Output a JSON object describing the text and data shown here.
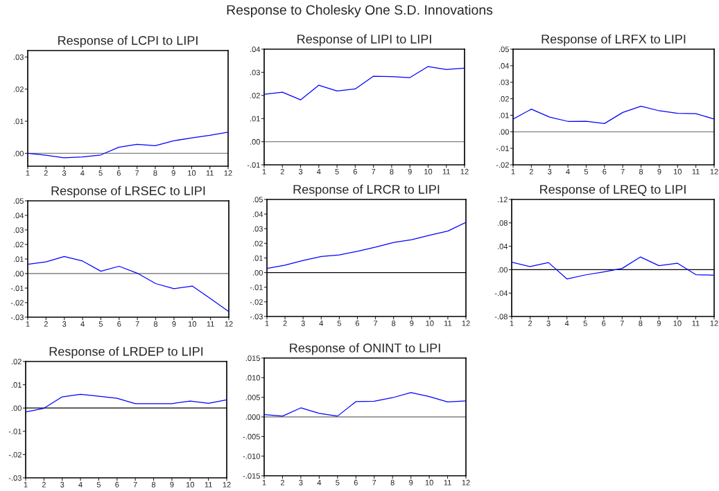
{
  "chart_data": [
    {
      "type": "line",
      "title": "Response of LCPI to LIPI",
      "annotations": [
        "Response to Cholesky One S.D. Innovations"
      ],
      "x": [
        1,
        2,
        3,
        4,
        5,
        6,
        7,
        8,
        9,
        10,
        11,
        12
      ],
      "xlim": [
        1,
        12
      ],
      "xticks": [
        1,
        2,
        3,
        4,
        5,
        6,
        7,
        8,
        9,
        10,
        11,
        12
      ],
      "ylim": [
        -0.004,
        0.032
      ],
      "yticks": [
        {
          "value": 0.0,
          "label": ".00"
        },
        {
          "value": 0.01,
          "label": ".01"
        },
        {
          "value": 0.02,
          "label": ".02"
        },
        {
          "value": 0.03,
          "label": ".03"
        }
      ],
      "grid": false,
      "legend": false,
      "ref_lines": [
        {
          "axis": "y",
          "value": 0,
          "color": "#808080"
        }
      ],
      "series": [
        {
          "color": "#0000ff",
          "values": [
            0.0,
            -0.0006,
            -0.0014,
            -0.0011,
            -0.0005,
            0.0019,
            0.0028,
            0.0024,
            0.0039,
            0.0048,
            0.0056,
            0.0066
          ]
        }
      ]
    },
    {
      "type": "line",
      "title": "Response of LIPI to LIPI",
      "x": [
        1,
        2,
        3,
        4,
        5,
        6,
        7,
        8,
        9,
        10,
        11,
        12
      ],
      "xlim": [
        1,
        12
      ],
      "xticks": [
        1,
        2,
        3,
        4,
        5,
        6,
        7,
        8,
        9,
        10,
        11,
        12
      ],
      "ylim": [
        -0.01,
        0.04
      ],
      "yticks": [
        {
          "value": -0.01,
          "label": "-.01"
        },
        {
          "value": 0.0,
          "label": ".00"
        },
        {
          "value": 0.01,
          "label": ".01"
        },
        {
          "value": 0.02,
          "label": ".02"
        },
        {
          "value": 0.03,
          "label": ".03"
        },
        {
          "value": 0.04,
          "label": ".04"
        }
      ],
      "grid": false,
      "legend": false,
      "ref_lines": [
        {
          "axis": "y",
          "value": 0,
          "color": "#808080"
        }
      ],
      "series": [
        {
          "color": "#0000ff",
          "values": [
            0.0205,
            0.0214,
            0.0181,
            0.0244,
            0.0219,
            0.0228,
            0.0283,
            0.0281,
            0.0277,
            0.0325,
            0.0312,
            0.0318
          ]
        }
      ]
    },
    {
      "type": "line",
      "title": "Response of LRFX to LIPI",
      "x": [
        1,
        2,
        3,
        4,
        5,
        6,
        7,
        8,
        9,
        10,
        11,
        12
      ],
      "xlim": [
        1,
        12
      ],
      "xticks": [
        1,
        2,
        3,
        4,
        5,
        6,
        7,
        8,
        9,
        10,
        11,
        12
      ],
      "ylim": [
        -0.02,
        0.05
      ],
      "yticks": [
        {
          "value": -0.02,
          "label": "-.02"
        },
        {
          "value": -0.01,
          "label": "-.01"
        },
        {
          "value": 0.0,
          "label": ".00"
        },
        {
          "value": 0.01,
          "label": ".01"
        },
        {
          "value": 0.02,
          "label": ".02"
        },
        {
          "value": 0.03,
          "label": ".03"
        },
        {
          "value": 0.04,
          "label": ".04"
        },
        {
          "value": 0.05,
          "label": ".05"
        }
      ],
      "grid": false,
      "legend": false,
      "ref_lines": [
        {
          "axis": "y",
          "value": 0,
          "color": "#808080"
        }
      ],
      "series": [
        {
          "color": "#0000ff",
          "values": [
            0.0077,
            0.0137,
            0.0089,
            0.0063,
            0.0064,
            0.005,
            0.0117,
            0.0155,
            0.0127,
            0.0112,
            0.011,
            0.0077
          ]
        }
      ]
    },
    {
      "type": "line",
      "title": "Response of LRSEC to LIPI",
      "x": [
        1,
        2,
        3,
        4,
        5,
        6,
        7,
        8,
        9,
        10,
        11,
        12
      ],
      "xlim": [
        1,
        12
      ],
      "xticks": [
        1,
        2,
        3,
        4,
        5,
        6,
        7,
        8,
        9,
        10,
        11,
        12
      ],
      "ylim": [
        -0.03,
        0.05
      ],
      "yticks": [
        {
          "value": -0.03,
          "label": "-.03"
        },
        {
          "value": -0.02,
          "label": "-.02"
        },
        {
          "value": -0.01,
          "label": "-.01"
        },
        {
          "value": 0.0,
          "label": ".00"
        },
        {
          "value": 0.01,
          "label": ".01"
        },
        {
          "value": 0.02,
          "label": ".02"
        },
        {
          "value": 0.03,
          "label": ".03"
        },
        {
          "value": 0.04,
          "label": ".04"
        },
        {
          "value": 0.05,
          "label": ".05"
        }
      ],
      "grid": false,
      "legend": false,
      "ref_lines": [
        {
          "axis": "y",
          "value": 0,
          "color": "#808080"
        }
      ],
      "series": [
        {
          "color": "#0000ff",
          "values": [
            0.0064,
            0.008,
            0.0117,
            0.0086,
            0.0016,
            0.005,
            0.0002,
            -0.0069,
            -0.0104,
            -0.0086,
            -0.0173,
            -0.0262
          ]
        }
      ]
    },
    {
      "type": "line",
      "title": "Response of LRCR to LIPI",
      "x": [
        1,
        2,
        3,
        4,
        5,
        6,
        7,
        8,
        9,
        10,
        11,
        12
      ],
      "xlim": [
        1,
        12
      ],
      "xticks": [
        1,
        2,
        3,
        4,
        5,
        6,
        7,
        8,
        9,
        10,
        11,
        12
      ],
      "ylim": [
        -0.03,
        0.05
      ],
      "yticks": [
        {
          "value": -0.03,
          "label": "-.03"
        },
        {
          "value": -0.02,
          "label": "-.02"
        },
        {
          "value": -0.01,
          "label": "-.01"
        },
        {
          "value": 0.0,
          "label": ".00"
        },
        {
          "value": 0.01,
          "label": ".01"
        },
        {
          "value": 0.02,
          "label": ".02"
        },
        {
          "value": 0.03,
          "label": ".03"
        },
        {
          "value": 0.04,
          "label": ".04"
        },
        {
          "value": 0.05,
          "label": ".05"
        }
      ],
      "grid": false,
      "legend": false,
      "ref_lines": [
        {
          "axis": "y",
          "value": 0,
          "color": "#000000"
        }
      ],
      "series": [
        {
          "color": "#0000ff",
          "values": [
            0.0028,
            0.0051,
            0.0083,
            0.011,
            0.0121,
            0.0146,
            0.0174,
            0.0206,
            0.0225,
            0.0256,
            0.0284,
            0.0343
          ]
        }
      ]
    },
    {
      "type": "line",
      "title": "Response of LREQ to LIPI",
      "x": [
        1,
        2,
        3,
        4,
        5,
        6,
        7,
        8,
        9,
        10,
        11,
        12
      ],
      "xlim": [
        1,
        12
      ],
      "xticks": [
        1,
        2,
        3,
        4,
        5,
        6,
        7,
        8,
        9,
        10,
        11,
        12
      ],
      "ylim": [
        -0.08,
        0.12
      ],
      "yticks": [
        {
          "value": -0.08,
          "label": "-.08"
        },
        {
          "value": -0.04,
          "label": "-.04"
        },
        {
          "value": 0.0,
          "label": ".00"
        },
        {
          "value": 0.04,
          "label": ".04"
        },
        {
          "value": 0.08,
          "label": ".08"
        },
        {
          "value": 0.12,
          "label": ".12"
        }
      ],
      "grid": false,
      "legend": false,
      "ref_lines": [
        {
          "axis": "y",
          "value": 0,
          "color": "#000000"
        }
      ],
      "series": [
        {
          "color": "#0000ff",
          "values": [
            0.0127,
            0.0053,
            0.0122,
            -0.0159,
            -0.009,
            -0.0037,
            0.0021,
            0.0217,
            0.0069,
            0.0111,
            -0.0085,
            -0.0095
          ]
        }
      ]
    },
    {
      "type": "line",
      "title": "Response of LRDEP to LIPI",
      "x": [
        1,
        2,
        3,
        4,
        5,
        6,
        7,
        8,
        9,
        10,
        11,
        12
      ],
      "xlim": [
        1,
        12
      ],
      "xticks": [
        1,
        2,
        3,
        4,
        5,
        6,
        7,
        8,
        9,
        10,
        11,
        12
      ],
      "ylim": [
        -0.03,
        0.02
      ],
      "yticks": [
        {
          "value": -0.03,
          "label": "-.03"
        },
        {
          "value": -0.02,
          "label": "-.02"
        },
        {
          "value": -0.01,
          "label": "-.01"
        },
        {
          "value": 0.0,
          "label": ".00"
        },
        {
          "value": 0.01,
          "label": ".01"
        },
        {
          "value": 0.02,
          "label": ".02"
        }
      ],
      "grid": false,
      "legend": false,
      "ref_lines": [
        {
          "axis": "y",
          "value": 0,
          "color": "#000000"
        }
      ],
      "series": [
        {
          "color": "#0000ff",
          "values": [
            -0.0017,
            -0.0001,
            0.0048,
            0.0059,
            0.0051,
            0.0042,
            0.0019,
            0.0019,
            0.0019,
            0.003,
            0.002,
            0.0035
          ]
        }
      ]
    },
    {
      "type": "line",
      "title": "Response of ONINT to LIPI",
      "x": [
        1,
        2,
        3,
        4,
        5,
        6,
        7,
        8,
        9,
        10,
        11,
        12
      ],
      "xlim": [
        1,
        12
      ],
      "xticks": [
        1,
        2,
        3,
        4,
        5,
        6,
        7,
        8,
        9,
        10,
        11,
        12
      ],
      "ylim": [
        -0.015,
        0.015
      ],
      "yticks": [
        {
          "value": -0.015,
          "label": "-.015"
        },
        {
          "value": -0.01,
          "label": "-.010"
        },
        {
          "value": -0.005,
          "label": "-.005"
        },
        {
          "value": 0.0,
          "label": ".000"
        },
        {
          "value": 0.005,
          "label": ".005"
        },
        {
          "value": 0.01,
          "label": ".010"
        },
        {
          "value": 0.015,
          "label": ".015"
        }
      ],
      "grid": false,
      "legend": false,
      "ref_lines": [
        {
          "axis": "y",
          "value": 0,
          "color": "#808080"
        }
      ],
      "series": [
        {
          "color": "#0000ff",
          "values": [
            0.0006,
            0.0002,
            0.0023,
            0.0009,
            0.0002,
            0.0039,
            0.004,
            0.0049,
            0.0062,
            0.0052,
            0.0038,
            0.0041
          ]
        }
      ]
    }
  ]
}
